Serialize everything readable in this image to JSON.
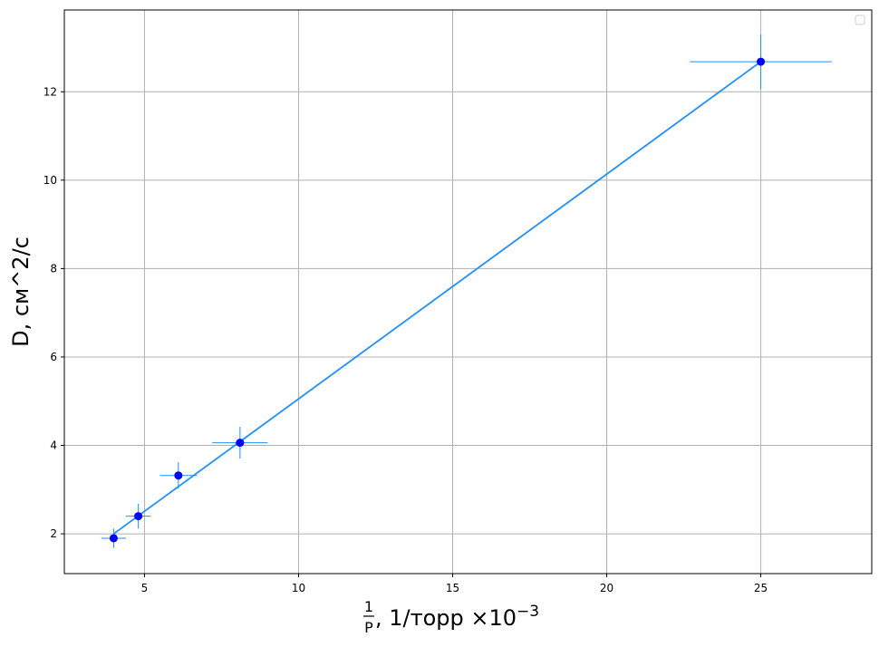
{
  "chart_data": {
    "type": "scatter",
    "title": "",
    "xlabel": {
      "frac_num": "1",
      "frac_den": "P",
      "text": ", 1/торр ×10",
      "exponent": "−3"
    },
    "ylabel": "D, см^2/с",
    "xlim": [
      2.4,
      28.6
    ],
    "ylim": [
      1.1,
      13.85
    ],
    "xticks": [
      5,
      10,
      15,
      20,
      25
    ],
    "yticks": [
      2,
      4,
      6,
      8,
      10,
      12
    ],
    "grid": true,
    "legend": "top-right",
    "points": [
      {
        "x": 4.0,
        "y": 1.9,
        "xerr": 0.4,
        "yerr": 0.22
      },
      {
        "x": 4.8,
        "y": 2.4,
        "xerr": 0.4,
        "yerr": 0.28
      },
      {
        "x": 6.1,
        "y": 3.32,
        "xerr": 0.6,
        "yerr": 0.3
      },
      {
        "x": 8.1,
        "y": 4.06,
        "xerr": 0.9,
        "yerr": 0.36
      },
      {
        "x": 25.0,
        "y": 12.68,
        "xerr": 2.3,
        "yerr": 0.62
      }
    ],
    "fit_line": {
      "x": [
        4.0,
        25.0
      ],
      "y": [
        2.0,
        12.68
      ]
    },
    "colors": {
      "points": "#0000ff",
      "errorbars": "#1e90ff",
      "fit": "#1e90ff",
      "grid": "#b0b0b0"
    }
  }
}
